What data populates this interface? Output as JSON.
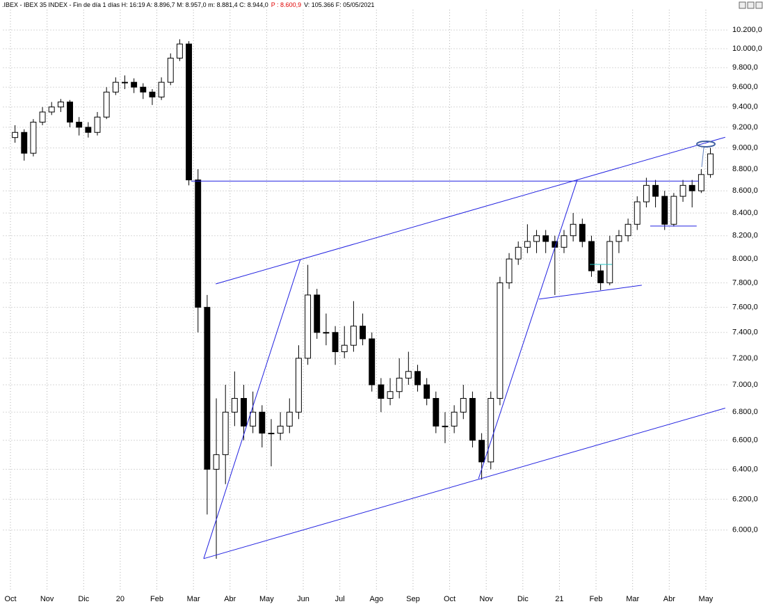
{
  "chart_data": {
    "type": "candlestick",
    "title": ".IBEX - IBEX 35 INDEX - Fin de día 1 días H: 16:19  A: 8.896,7  M: 8.957,0  m: 8.881,4  C: 8.944,0",
    "last_price_label": "P : 8.600,9",
    "title_suffix": "V: 105.366  F: 05/05/2021",
    "log_scale": true,
    "grid": true,
    "up_color": "#ffffff",
    "down_color": "#000000",
    "xlim": [
      -0.2,
      19.6
    ],
    "xticks": [
      {
        "value": 0,
        "label": "Oct"
      },
      {
        "value": 1,
        "label": "Nov"
      },
      {
        "value": 2,
        "label": "Dic"
      },
      {
        "value": 3,
        "label": "20"
      },
      {
        "value": 4,
        "label": "Feb"
      },
      {
        "value": 5,
        "label": "Mar"
      },
      {
        "value": 6,
        "label": "Abr"
      },
      {
        "value": 7,
        "label": "May"
      },
      {
        "value": 8,
        "label": "Jun"
      },
      {
        "value": 9,
        "label": "Jul"
      },
      {
        "value": 10,
        "label": "Ago"
      },
      {
        "value": 11,
        "label": "Sep"
      },
      {
        "value": 12,
        "label": "Oct"
      },
      {
        "value": 13,
        "label": "Nov"
      },
      {
        "value": 14,
        "label": "Dic"
      },
      {
        "value": 15,
        "label": "21"
      },
      {
        "value": 16,
        "label": "Feb"
      },
      {
        "value": 17,
        "label": "Mar"
      },
      {
        "value": 18,
        "label": "Abr"
      },
      {
        "value": 19,
        "label": "May"
      }
    ],
    "ylim": [
      5630,
      10530
    ],
    "yticks": [
      {
        "value": 6000,
        "label": "6.000,0"
      },
      {
        "value": 6200,
        "label": "6.200,0"
      },
      {
        "value": 6400,
        "label": "6.400,0"
      },
      {
        "value": 6600,
        "label": "6.600,0"
      },
      {
        "value": 6800,
        "label": "6.800,0"
      },
      {
        "value": 7000,
        "label": "7.000,0"
      },
      {
        "value": 7200,
        "label": "7.200,0"
      },
      {
        "value": 7400,
        "label": "7.400,0"
      },
      {
        "value": 7600,
        "label": "7.600,0"
      },
      {
        "value": 7800,
        "label": "7.800,0"
      },
      {
        "value": 8000,
        "label": "8.000,0"
      },
      {
        "value": 8200,
        "label": "8.200,0"
      },
      {
        "value": 8400,
        "label": "8.400,0"
      },
      {
        "value": 8600,
        "label": "8.600,0"
      },
      {
        "value": 8800,
        "label": "8.800,0"
      },
      {
        "value": 9000,
        "label": "9.000,0"
      },
      {
        "value": 9200,
        "label": "9.200,0"
      },
      {
        "value": 9400,
        "label": "9.400,0"
      },
      {
        "value": 9600,
        "label": "9.600,0"
      },
      {
        "value": 9800,
        "label": "9.800,0"
      },
      {
        "value": 10000,
        "label": "10.000,0"
      },
      {
        "value": 10200,
        "label": "10.200,0"
      }
    ],
    "x": [
      0.125,
      0.375,
      0.625,
      0.875,
      1.125,
      1.375,
      1.625,
      1.875,
      2.125,
      2.375,
      2.625,
      2.875,
      3.125,
      3.375,
      3.625,
      3.875,
      4.125,
      4.375,
      4.625,
      4.875,
      5.125,
      5.375,
      5.625,
      5.875,
      6.125,
      6.375,
      6.625,
      6.875,
      7.125,
      7.375,
      7.625,
      7.875,
      8.125,
      8.375,
      8.625,
      8.875,
      9.125,
      9.375,
      9.625,
      9.875,
      10.125,
      10.375,
      10.625,
      10.875,
      11.125,
      11.375,
      11.625,
      11.875,
      12.125,
      12.375,
      12.625,
      12.875,
      13.125,
      13.375,
      13.625,
      13.875,
      14.125,
      14.375,
      14.625,
      14.875,
      15.125,
      15.375,
      15.625,
      15.875,
      16.125,
      16.375,
      16.625,
      16.875,
      17.125,
      17.375,
      17.625,
      17.875,
      18.125,
      18.375,
      18.625,
      18.875,
      19.125
    ],
    "open": [
      9100,
      9150,
      8950,
      9250,
      9350,
      9400,
      9450,
      9250,
      9200,
      9150,
      9300,
      9550,
      9650,
      9650,
      9600,
      9550,
      9500,
      9650,
      9900,
      10050,
      8700,
      7600,
      6400,
      6500,
      6800,
      6900,
      6700,
      6800,
      6650,
      6650,
      6700,
      6800,
      7200,
      7700,
      7400,
      7400,
      7250,
      7300,
      7450,
      7350,
      7000,
      6900,
      6950,
      7050,
      7100,
      7000,
      6900,
      6700,
      6700,
      6800,
      6900,
      6600,
      6450,
      6900,
      7800,
      8000,
      8100,
      8150,
      8200,
      8150,
      8100,
      8200,
      8300,
      8150,
      7900,
      7800,
      8150,
      8200,
      8300,
      8500,
      8650,
      8550,
      8300,
      8550,
      8650,
      8600,
      8750
    ],
    "high": [
      9220,
      9180,
      9280,
      9400,
      9450,
      9480,
      9470,
      9300,
      9250,
      9350,
      9600,
      9700,
      9720,
      9690,
      9640,
      9580,
      9700,
      9950,
      10100,
      10080,
      8800,
      7700,
      6900,
      7000,
      7100,
      7000,
      6950,
      6850,
      6750,
      6800,
      6900,
      7300,
      7950,
      7750,
      7550,
      7450,
      7450,
      7650,
      7550,
      7400,
      7050,
      7050,
      7200,
      7250,
      7150,
      7050,
      6950,
      6800,
      6850,
      7000,
      6950,
      6650,
      6950,
      7850,
      8050,
      8150,
      8300,
      8250,
      8250,
      8200,
      8250,
      8400,
      8350,
      8200,
      7950,
      8200,
      8250,
      8350,
      8550,
      8720,
      8700,
      8600,
      8580,
      8700,
      8700,
      8800,
      9000
    ],
    "low": [
      9050,
      8880,
      8920,
      9220,
      9320,
      9350,
      9200,
      9120,
      9100,
      9120,
      9280,
      9520,
      9580,
      9540,
      9480,
      9420,
      9470,
      9620,
      9870,
      8650,
      7400,
      6100,
      5820,
      6300,
      6700,
      6600,
      6650,
      6550,
      6420,
      6600,
      6650,
      6750,
      7150,
      7350,
      7300,
      7150,
      7200,
      7250,
      7300,
      6950,
      6800,
      6850,
      6900,
      7000,
      6950,
      6850,
      6650,
      6580,
      6650,
      6750,
      6550,
      6330,
      6400,
      6850,
      7750,
      7950,
      8050,
      8050,
      8050,
      7700,
      8050,
      8150,
      8100,
      7850,
      7740,
      7780,
      8050,
      8150,
      8250,
      8450,
      8450,
      8250,
      8280,
      8500,
      8450,
      8580,
      8720
    ],
    "close": [
      9150,
      8950,
      9250,
      9350,
      9400,
      9450,
      9250,
      9200,
      9150,
      9300,
      9550,
      9650,
      9650,
      9600,
      9550,
      9500,
      9650,
      9900,
      10050,
      8700,
      7600,
      6400,
      6500,
      6800,
      6900,
      6700,
      6800,
      6650,
      6650,
      6700,
      6800,
      7200,
      7700,
      7400,
      7400,
      7250,
      7300,
      7450,
      7350,
      7000,
      6900,
      6950,
      7050,
      7100,
      7000,
      6900,
      6700,
      6700,
      6800,
      6900,
      6600,
      6450,
      6900,
      7800,
      8000,
      8100,
      8150,
      8200,
      8150,
      8100,
      8200,
      8300,
      8150,
      7900,
      7800,
      8150,
      8200,
      8300,
      8500,
      8650,
      8550,
      8300,
      8550,
      8650,
      8600,
      8750,
      8944
    ],
    "trendlines": [
      {
        "color": "#2020e0",
        "x": [
          5.61,
          19.53
        ],
        "y": [
          7791,
          9103
        ]
      },
      {
        "color": "#2020e0",
        "x": [
          5.28,
          19.53
        ],
        "y": [
          5821,
          6829
        ]
      },
      {
        "color": "#2020e0",
        "x": [
          4.94,
          18.81
        ],
        "y": [
          8689,
          8689
        ]
      },
      {
        "color": "#2020e0",
        "x": [
          5.28,
          7.92
        ],
        "y": [
          5821,
          7995
        ]
      },
      {
        "color": "#2020e0",
        "x": [
          12.79,
          15.49
        ],
        "y": [
          6337,
          8704
        ]
      },
      {
        "color": "#2020e0",
        "x": [
          14.44,
          17.25
        ],
        "y": [
          7666,
          7780
        ]
      },
      {
        "color": "#2020e0",
        "x": [
          17.48,
          18.75
        ],
        "y": [
          8284,
          8284
        ]
      },
      {
        "color": "#20c0c0",
        "x": [
          15.83,
          16.44
        ],
        "y": [
          7954,
          7954
        ]
      }
    ]
  }
}
